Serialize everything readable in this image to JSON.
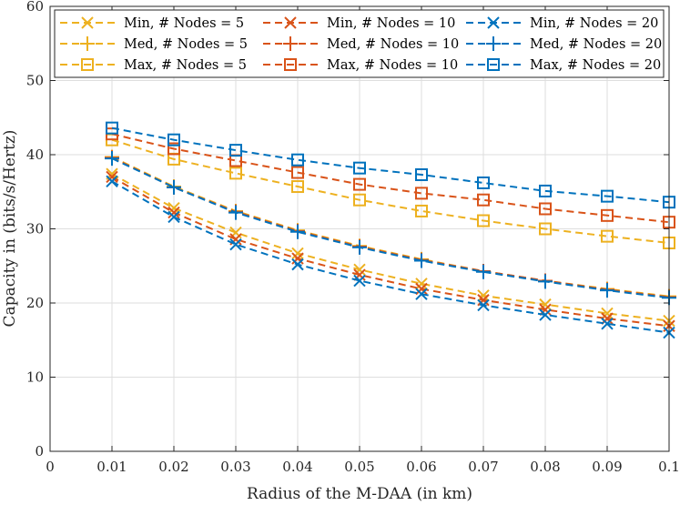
{
  "chart_data": {
    "type": "line",
    "title": "",
    "xlabel": "Radius of the M-DAA (in km)",
    "ylabel": "Capacity in (bits/s/Hertz)",
    "xlim": [
      0,
      0.1
    ],
    "ylim": [
      0,
      60
    ],
    "xticks": [
      0,
      0.01,
      0.02,
      0.03,
      0.04,
      0.05,
      0.06,
      0.07,
      0.08,
      0.09,
      0.1
    ],
    "xtick_labels": [
      "0",
      "0.01",
      "0.02",
      "0.03",
      "0.04",
      "0.05",
      "0.06",
      "0.07",
      "0.08",
      "0.09",
      "0.1"
    ],
    "yticks": [
      0,
      10,
      20,
      30,
      40,
      50,
      60
    ],
    "ytick_labels": [
      "0",
      "10",
      "20",
      "30",
      "40",
      "50",
      "60"
    ],
    "grid": true,
    "legend_position": "top",
    "x": [
      0.01,
      0.02,
      0.03,
      0.04,
      0.05,
      0.06,
      0.07,
      0.08,
      0.09,
      0.1
    ],
    "series": [
      {
        "name": "Min, # Nodes = 5",
        "color": "#EDB120",
        "marker": "x",
        "values": [
          37.4,
          32.8,
          29.5,
          26.7,
          24.5,
          22.6,
          21.0,
          19.8,
          18.6,
          17.6
        ]
      },
      {
        "name": "Med, # Nodes = 5",
        "color": "#EDB120",
        "marker": "plus",
        "values": [
          39.7,
          35.7,
          32.4,
          29.8,
          27.7,
          25.9,
          24.3,
          23.0,
          21.9,
          20.9
        ]
      },
      {
        "name": "Max, # Nodes = 5",
        "color": "#EDB120",
        "marker": "square",
        "values": [
          42.0,
          39.4,
          37.5,
          35.7,
          33.9,
          32.4,
          31.1,
          30.0,
          29.0,
          28.1
        ]
      },
      {
        "name": "Min, # Nodes = 10",
        "color": "#D95319",
        "marker": "x",
        "values": [
          37.0,
          32.2,
          28.6,
          26.0,
          23.8,
          21.9,
          20.4,
          19.1,
          17.9,
          16.9
        ]
      },
      {
        "name": "Med, # Nodes = 10",
        "color": "#D95319",
        "marker": "plus",
        "values": [
          39.6,
          35.6,
          32.3,
          29.7,
          27.6,
          25.8,
          24.3,
          23.0,
          21.8,
          20.8
        ]
      },
      {
        "name": "Max, # Nodes = 10",
        "color": "#D95319",
        "marker": "square",
        "values": [
          42.8,
          40.8,
          39.2,
          37.6,
          36.0,
          34.8,
          33.9,
          32.7,
          31.8,
          30.9
        ]
      },
      {
        "name": "Min, # Nodes = 20",
        "color": "#0072BD",
        "marker": "x",
        "values": [
          36.4,
          31.6,
          27.9,
          25.2,
          23.0,
          21.2,
          19.7,
          18.4,
          17.2,
          16.0
        ]
      },
      {
        "name": "Med, # Nodes = 20",
        "color": "#0072BD",
        "marker": "plus",
        "values": [
          39.5,
          35.6,
          32.2,
          29.6,
          27.5,
          25.7,
          24.2,
          22.9,
          21.7,
          20.7
        ]
      },
      {
        "name": "Max, # Nodes = 20",
        "color": "#0072BD",
        "marker": "square",
        "values": [
          43.6,
          42.0,
          40.6,
          39.3,
          38.2,
          37.3,
          36.2,
          35.1,
          34.4,
          33.6
        ]
      }
    ]
  }
}
